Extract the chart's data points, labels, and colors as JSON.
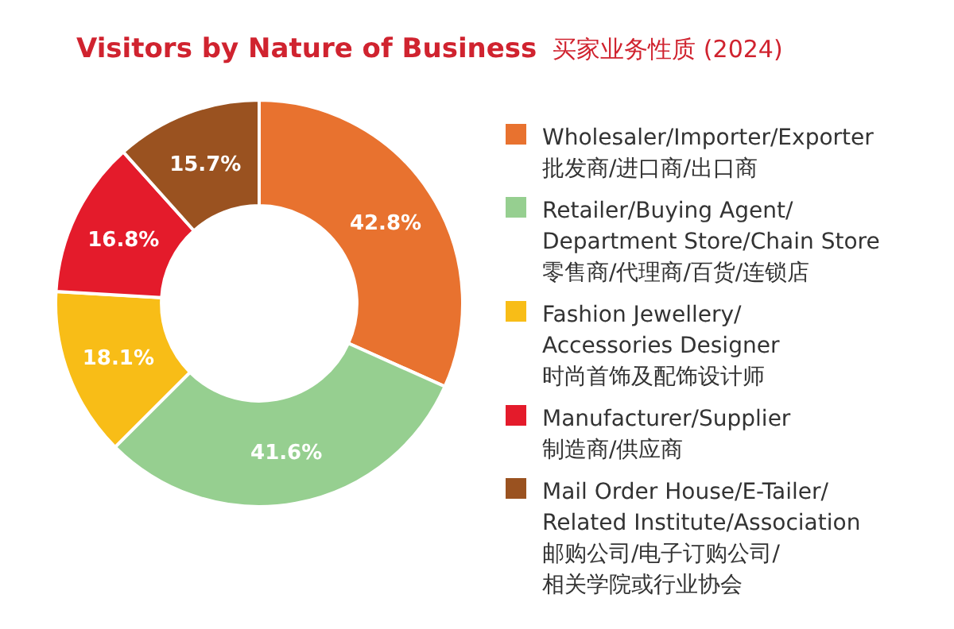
{
  "chart_data": {
    "type": "donut",
    "title": "Visitors by Nature of Business",
    "subtitle": "买家业务性质 (2024)",
    "categories": [
      "Wholesaler/Importer/Exporter\n批发商/进口商/出口商",
      "Retailer/Buying Agent/\nDepartment Store/Chain Store\n零售商/代理商/百货/连锁店",
      "Fashion Jewellery/\nAccessories Designer\n时尚首饰及配饰设计师",
      "Manufacturer/Supplier\n制造商/供应商",
      "Mail Order House/E-Tailer/\nRelated Institute/Association\n邮购公司/电子订购公司/\n相关学院或行业协会"
    ],
    "values": [
      42.8,
      41.6,
      18.1,
      16.8,
      15.7
    ],
    "value_labels": [
      "42.8%",
      "41.6%",
      "18.1%",
      "16.8%",
      "15.7%"
    ],
    "colors": [
      "#e8722f",
      "#96cf90",
      "#f8bd17",
      "#e41b2b",
      "#9a5220"
    ],
    "legend": "right"
  }
}
